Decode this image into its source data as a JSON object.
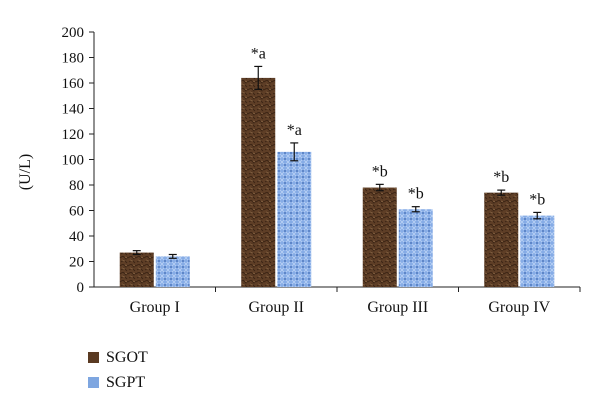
{
  "chart_data": {
    "type": "bar",
    "categories": [
      "Group I",
      "Group II",
      "Group III",
      "Group IV"
    ],
    "ylabel": "(U/L)",
    "ylim": [
      0,
      200
    ],
    "yticks": [
      0,
      20,
      40,
      60,
      80,
      100,
      120,
      140,
      160,
      180,
      200
    ],
    "grid": false,
    "legend_position": "bottom-left",
    "series": [
      {
        "name": "SGOT",
        "color": "#5a3a22",
        "values": [
          27,
          164,
          78,
          74
        ],
        "errors": [
          1.5,
          9,
          2.5,
          2
        ],
        "annotations": [
          "",
          "*a",
          "*b",
          "*b"
        ]
      },
      {
        "name": "SGPT",
        "color": "#7ea6e0",
        "values": [
          24,
          106,
          61,
          56
        ],
        "errors": [
          1.5,
          7,
          2,
          2.5
        ],
        "annotations": [
          "",
          "*a",
          "*b",
          "*b"
        ]
      }
    ]
  }
}
